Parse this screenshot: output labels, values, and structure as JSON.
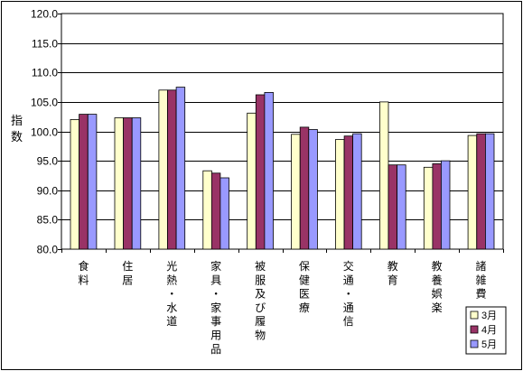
{
  "chart_data": {
    "type": "bar",
    "ylabel": "指数",
    "ylim": [
      80,
      120
    ],
    "ytick_step": 5,
    "yticks": [
      "80.0",
      "85.0",
      "90.0",
      "95.0",
      "100.0",
      "105.0",
      "110.0",
      "115.0",
      "120.0"
    ],
    "grid": true,
    "legend_position": "bottom-right",
    "categories": [
      "食料",
      "住居",
      "光熱・水道",
      "家具・家事用品",
      "被服及び履物",
      "保健医療",
      "交通・通信",
      "教育",
      "教養娯楽",
      "諸雑費"
    ],
    "series": [
      {
        "name": "3月",
        "color": "#FFFFCC",
        "values": [
          102.0,
          102.3,
          107.0,
          93.3,
          103.1,
          99.5,
          98.6,
          105.0,
          93.9,
          99.3
        ]
      },
      {
        "name": "4月",
        "color": "#993366",
        "values": [
          102.9,
          102.3,
          107.0,
          92.9,
          106.2,
          100.7,
          99.2,
          94.3,
          94.5,
          99.6
        ]
      },
      {
        "name": "5月",
        "color": "#9999FF",
        "values": [
          102.9,
          102.3,
          107.5,
          92.1,
          106.6,
          100.3,
          99.6,
          94.3,
          95.0,
          99.6
        ]
      }
    ]
  }
}
